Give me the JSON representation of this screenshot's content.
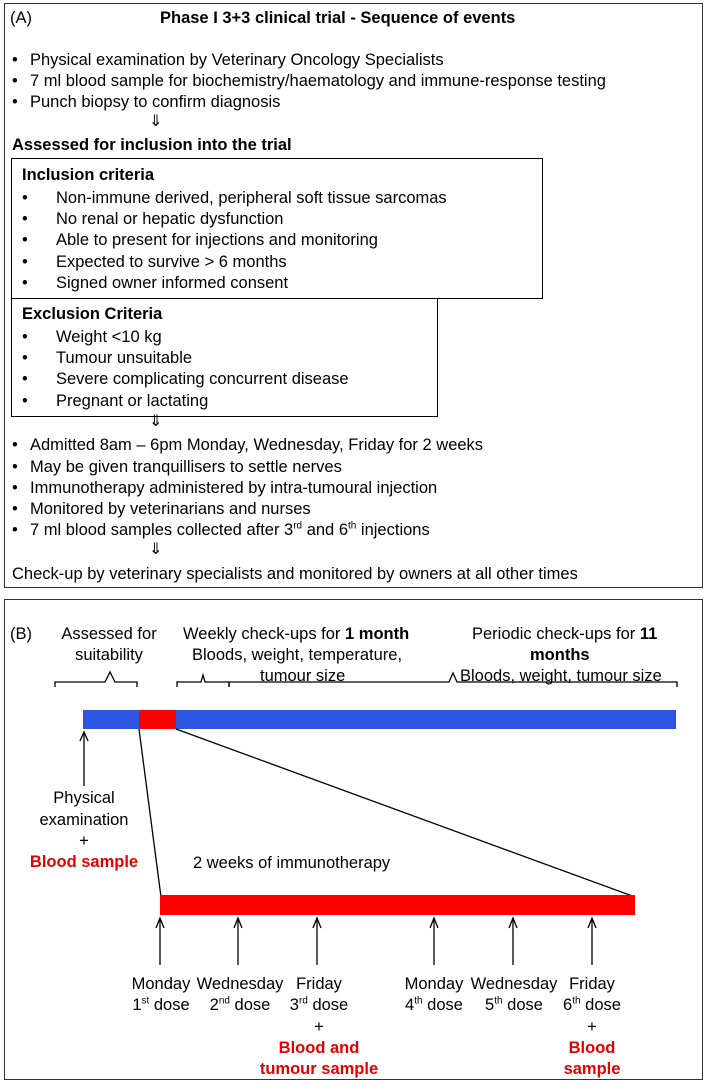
{
  "panelA": {
    "label": "(A)",
    "title": "Phase I 3+3 clinical trial - Sequence of events",
    "initial_steps": [
      "Physical examination by Veterinary Oncology Specialists",
      "7 ml blood sample for biochemistry/haematology and immune-response testing",
      "Punch biopsy to confirm diagnosis"
    ],
    "assessed_heading": "Assessed for inclusion into the trial",
    "inclusion": {
      "title": "Inclusion criteria",
      "items": [
        "Non-immune derived, peripheral soft tissue sarcomas",
        "No renal or hepatic dysfunction",
        "Able to present for injections and monitoring",
        "Expected to survive > 6 months",
        "Signed owner informed consent"
      ]
    },
    "exclusion": {
      "title": "Exclusion Criteria",
      "items": [
        "Weight <10 kg",
        "Tumour unsuitable",
        "Severe complicating concurrent disease",
        "Pregnant or lactating"
      ]
    },
    "treatment_steps": [
      "Admitted 8am – 6pm Monday, Wednesday, Friday for 2 weeks",
      "May be given tranquillisers to settle nerves",
      "Immunotherapy administered by intra-tumoural injection",
      "Monitored by veterinarians and nurses"
    ],
    "blood_step": {
      "prefix": "7 ml blood samples collected after 3",
      "sup1": "rd",
      "mid": " and 6",
      "sup2": "th",
      "suffix": " injections"
    },
    "footer": "Check-up by veterinary specialists and monitored by owners at all other times",
    "arrow_glyph": "⇓",
    "bullet": "•"
  },
  "panelB": {
    "label": "(B)",
    "assessed_line1": "Assessed for",
    "assessed_line2": "suitability",
    "weekly_prefix": "Weekly check-ups for ",
    "weekly_bold": "1 month",
    "weekly_line2": "Bloods, weight, temperature,",
    "weekly_line3": "tumour size",
    "periodic_prefix": "Periodic check-ups for ",
    "periodic_bold1": "11",
    "periodic_bold2": "months",
    "periodic_line3": "Bloods, weight, tumour size",
    "physical_line1": "Physical",
    "physical_line2": "examination",
    "physical_plus": "+",
    "physical_blood": "Blood sample",
    "immuno_label": "2 weeks of immunotherapy",
    "colors": {
      "timeline_blue": "#2e55e0",
      "therapy_red": "#ff0000"
    },
    "doses": [
      {
        "day": "Monday",
        "num": "1",
        "sup": "st",
        "word": " dose"
      },
      {
        "day": "Wednesday",
        "num": "2",
        "sup": "nd",
        "word": " dose"
      },
      {
        "day": "Friday",
        "num": "3",
        "sup": "rd",
        "word": " dose"
      },
      {
        "day": "Monday",
        "num": "4",
        "sup": "th",
        "word": " dose"
      },
      {
        "day": "Wednesday",
        "num": "5",
        "sup": "th",
        "word": " dose"
      },
      {
        "day": "Friday",
        "num": "6",
        "sup": "th",
        "word": " dose"
      }
    ],
    "dose3_plus": "+",
    "dose3_sample_line1": "Blood and",
    "dose3_sample_line2": "tumour sample",
    "dose6_plus": "+",
    "dose6_sample_line1": "Blood",
    "dose6_sample_line2": "sample"
  }
}
